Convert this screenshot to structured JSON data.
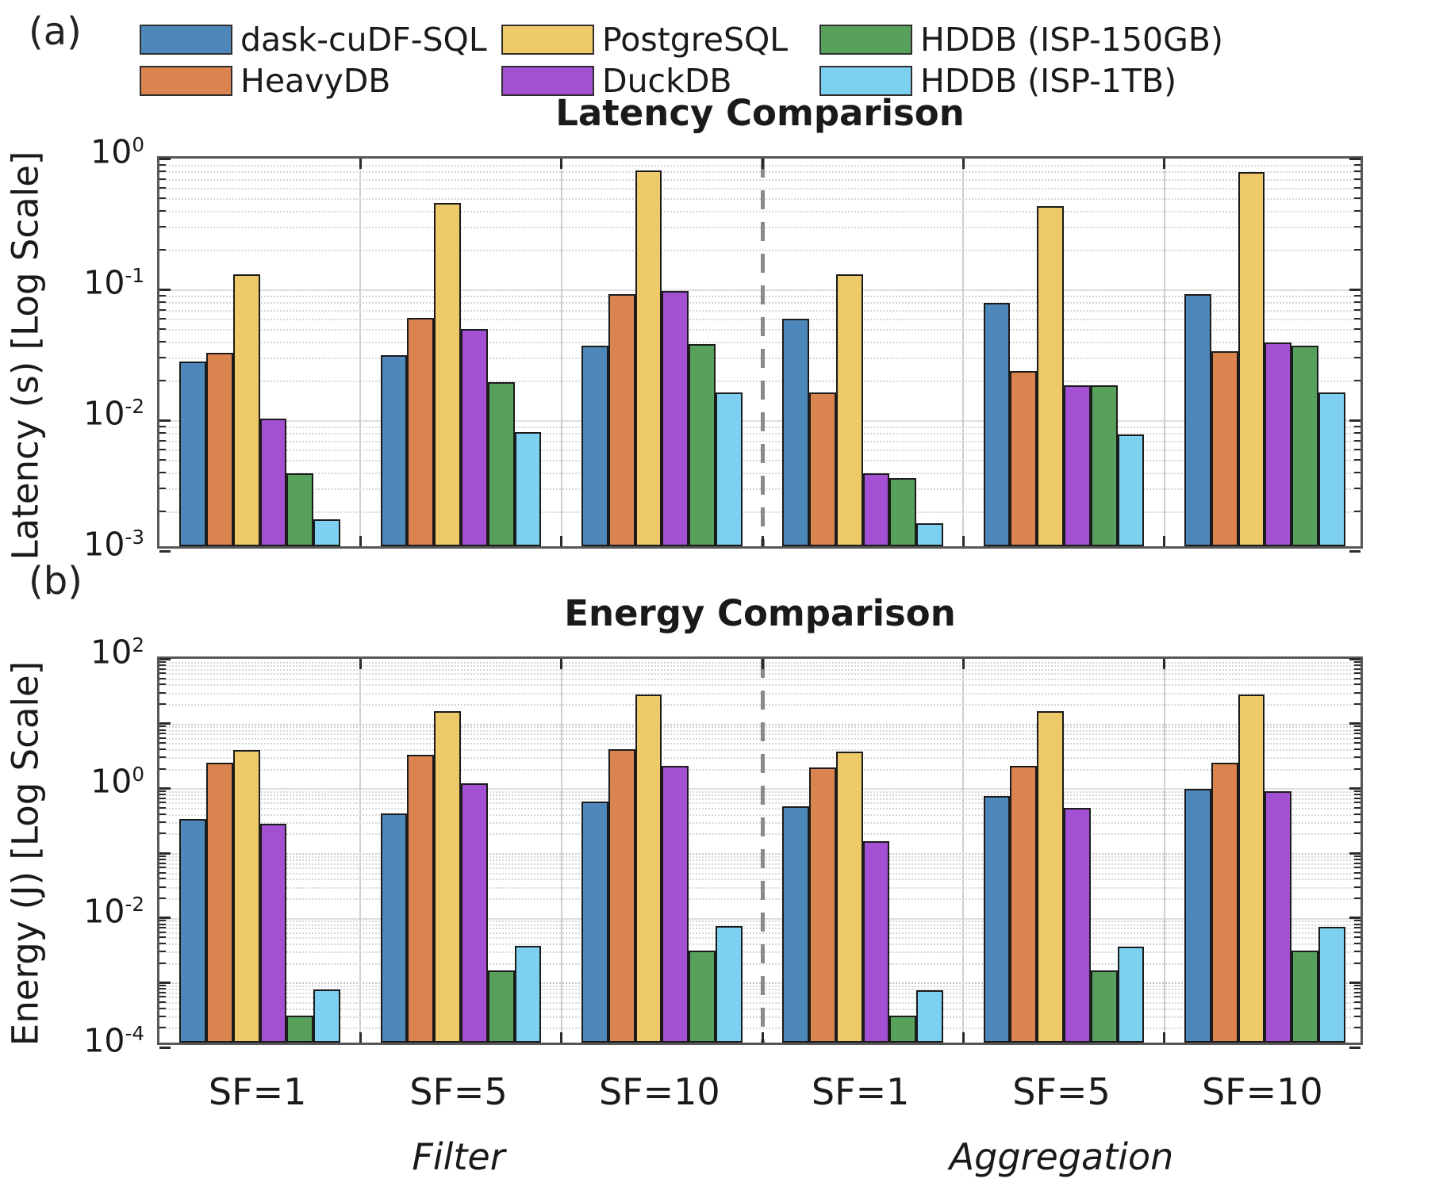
{
  "panels": {
    "a": "(a)",
    "b": "(b)"
  },
  "legend": {
    "items": [
      {
        "label": "dask-cuDF-SQL",
        "color": "#4E87BA"
      },
      {
        "label": "HeavyDB",
        "color": "#DC8450"
      },
      {
        "label": "PostgreSQL",
        "color": "#EEC96A"
      },
      {
        "label": "DuckDB",
        "color": "#A350D2"
      },
      {
        "label": "HDDB (ISP-150GB)",
        "color": "#58A15C"
      },
      {
        "label": "HDDB (ISP-1TB)",
        "color": "#7DD0EF"
      }
    ]
  },
  "chart_data": [
    {
      "type": "bar",
      "panel": "(a)",
      "title": "Latency Comparison",
      "ylabel": "Latency (s) [Log Scale]",
      "yscale": "log",
      "ylim": [
        0.001,
        1
      ],
      "ytick_exponents": [
        0,
        -1,
        -2,
        -3
      ],
      "grid": true,
      "legend_position": "top",
      "x_group_labels": [
        "SF=1",
        "SF=5",
        "SF=10",
        "SF=1",
        "SF=5",
        "SF=10"
      ],
      "x_section_labels": [
        "Filter",
        "Aggregation"
      ],
      "series": [
        {
          "name": "dask-cuDF-SQL",
          "color": "#4E87BA",
          "values": [
            0.026,
            0.029,
            0.034,
            0.055,
            0.073,
            0.085
          ]
        },
        {
          "name": "HeavyDB",
          "color": "#DC8450",
          "values": [
            0.03,
            0.056,
            0.085,
            0.015,
            0.022,
            0.031
          ]
        },
        {
          "name": "PostgreSQL",
          "color": "#EEC96A",
          "values": [
            0.12,
            0.42,
            0.75,
            0.12,
            0.4,
            0.73
          ]
        },
        {
          "name": "DuckDB",
          "color": "#A350D2",
          "values": [
            0.0095,
            0.046,
            0.09,
            0.0036,
            0.017,
            0.036
          ]
        },
        {
          "name": "HDDB (ISP-150GB)",
          "color": "#58A15C",
          "values": [
            0.0036,
            0.018,
            0.035,
            0.0033,
            0.017,
            0.034
          ]
        },
        {
          "name": "HDDB (ISP-1TB)",
          "color": "#7DD0EF",
          "values": [
            0.0016,
            0.0075,
            0.015,
            0.0015,
            0.0072,
            0.015
          ]
        }
      ]
    },
    {
      "type": "bar",
      "panel": "(b)",
      "title": "Energy Comparison",
      "ylabel": "Energy (J) [Log Scale]",
      "yscale": "log",
      "ylim": [
        0.0001,
        100
      ],
      "ytick_exponents": [
        2,
        0,
        -2,
        -4
      ],
      "grid": true,
      "legend_position": "top",
      "x_group_labels": [
        "SF=1",
        "SF=5",
        "SF=10",
        "SF=1",
        "SF=5",
        "SF=10"
      ],
      "x_section_labels": [
        "Filter",
        "Aggregation"
      ],
      "series": [
        {
          "name": "dask-cuDF-SQL",
          "color": "#4E87BA",
          "values": [
            0.28,
            0.35,
            0.53,
            0.44,
            0.65,
            0.84
          ]
        },
        {
          "name": "HeavyDB",
          "color": "#DC8450",
          "values": [
            2.1,
            2.8,
            3.4,
            1.8,
            1.9,
            2.1
          ]
        },
        {
          "name": "PostgreSQL",
          "color": "#EEC96A",
          "values": [
            3.3,
            13,
            24,
            3.1,
            13,
            24
          ]
        },
        {
          "name": "DuckDB",
          "color": "#A350D2",
          "values": [
            0.24,
            1.0,
            1.9,
            0.13,
            0.42,
            0.77
          ]
        },
        {
          "name": "HDDB (ISP-150GB)",
          "color": "#58A15C",
          "values": [
            0.00026,
            0.0013,
            0.0026,
            0.00026,
            0.0013,
            0.0026
          ]
        },
        {
          "name": "HDDB (ISP-1TB)",
          "color": "#7DD0EF",
          "values": [
            0.00066,
            0.0031,
            0.0063,
            0.00065,
            0.003,
            0.0062
          ]
        }
      ]
    }
  ]
}
